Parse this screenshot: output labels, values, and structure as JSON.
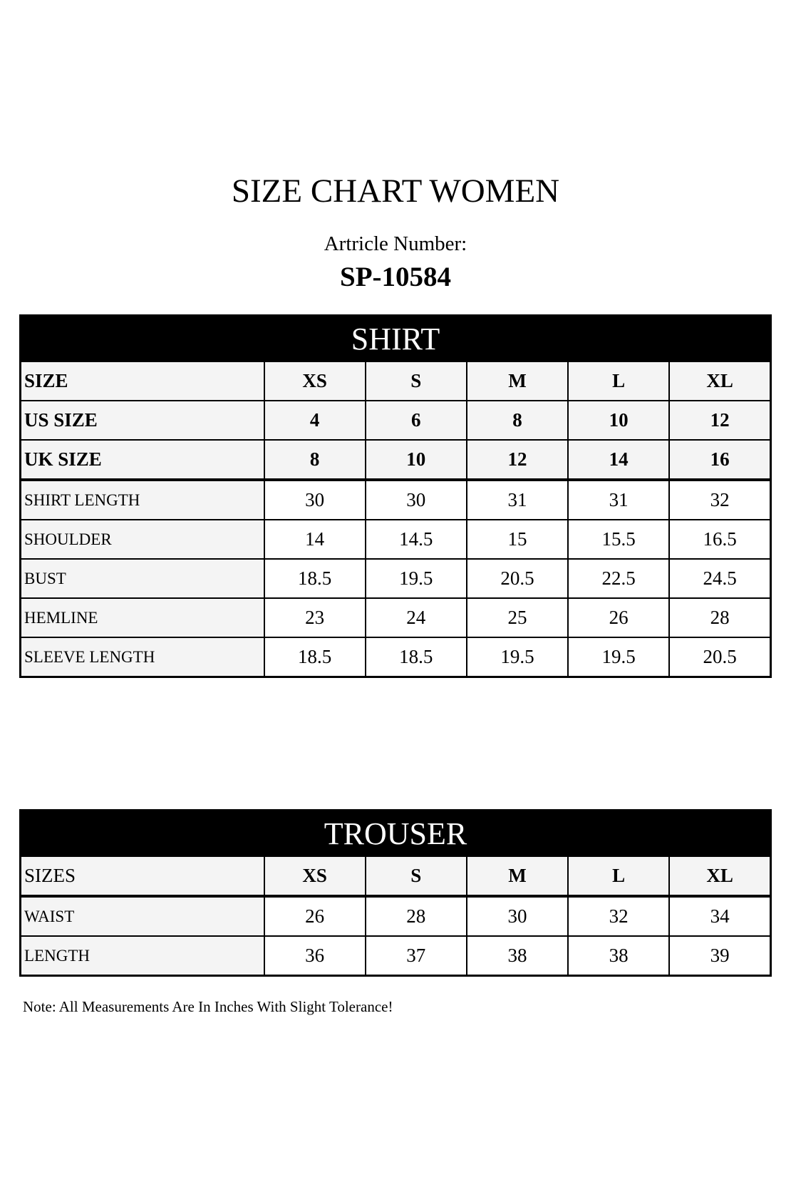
{
  "title": "SIZE CHART WOMEN",
  "article_label": "Artricle Number:",
  "article_number": "SP-10584",
  "shirt": {
    "heading": "SHIRT",
    "size_rows": [
      {
        "label": "SIZE",
        "values": [
          "XS",
          "S",
          "M",
          "L",
          "XL"
        ]
      },
      {
        "label": "US SIZE",
        "values": [
          "4",
          "6",
          "8",
          "10",
          "12"
        ]
      },
      {
        "label": "UK SIZE",
        "values": [
          "8",
          "10",
          "12",
          "14",
          "16"
        ]
      }
    ],
    "rows": [
      {
        "label": "SHIRT LENGTH",
        "values": [
          "30",
          "30",
          "31",
          "31",
          "32"
        ]
      },
      {
        "label": "SHOULDER",
        "values": [
          "14",
          "14.5",
          "15",
          "15.5",
          "16.5"
        ]
      },
      {
        "label": "BUST",
        "values": [
          "18.5",
          "19.5",
          "20.5",
          "22.5",
          "24.5"
        ]
      },
      {
        "label": "HEMLINE",
        "values": [
          "23",
          "24",
          "25",
          "26",
          "28"
        ]
      },
      {
        "label": "SLEEVE LENGTH",
        "values": [
          "18.5",
          "18.5",
          "19.5",
          "19.5",
          "20.5"
        ]
      }
    ]
  },
  "trouser": {
    "heading": "TROUSER",
    "size_row": {
      "label": "SIZES",
      "values": [
        "XS",
        "S",
        "M",
        "L",
        "XL"
      ]
    },
    "rows": [
      {
        "label": "WAIST",
        "values": [
          "26",
          "28",
          "30",
          "32",
          "34"
        ]
      },
      {
        "label": "LENGTH",
        "values": [
          "36",
          "37",
          "38",
          "38",
          "39"
        ]
      }
    ]
  },
  "note": "Note: All Measurements Are In Inches With Slight Tolerance!"
}
